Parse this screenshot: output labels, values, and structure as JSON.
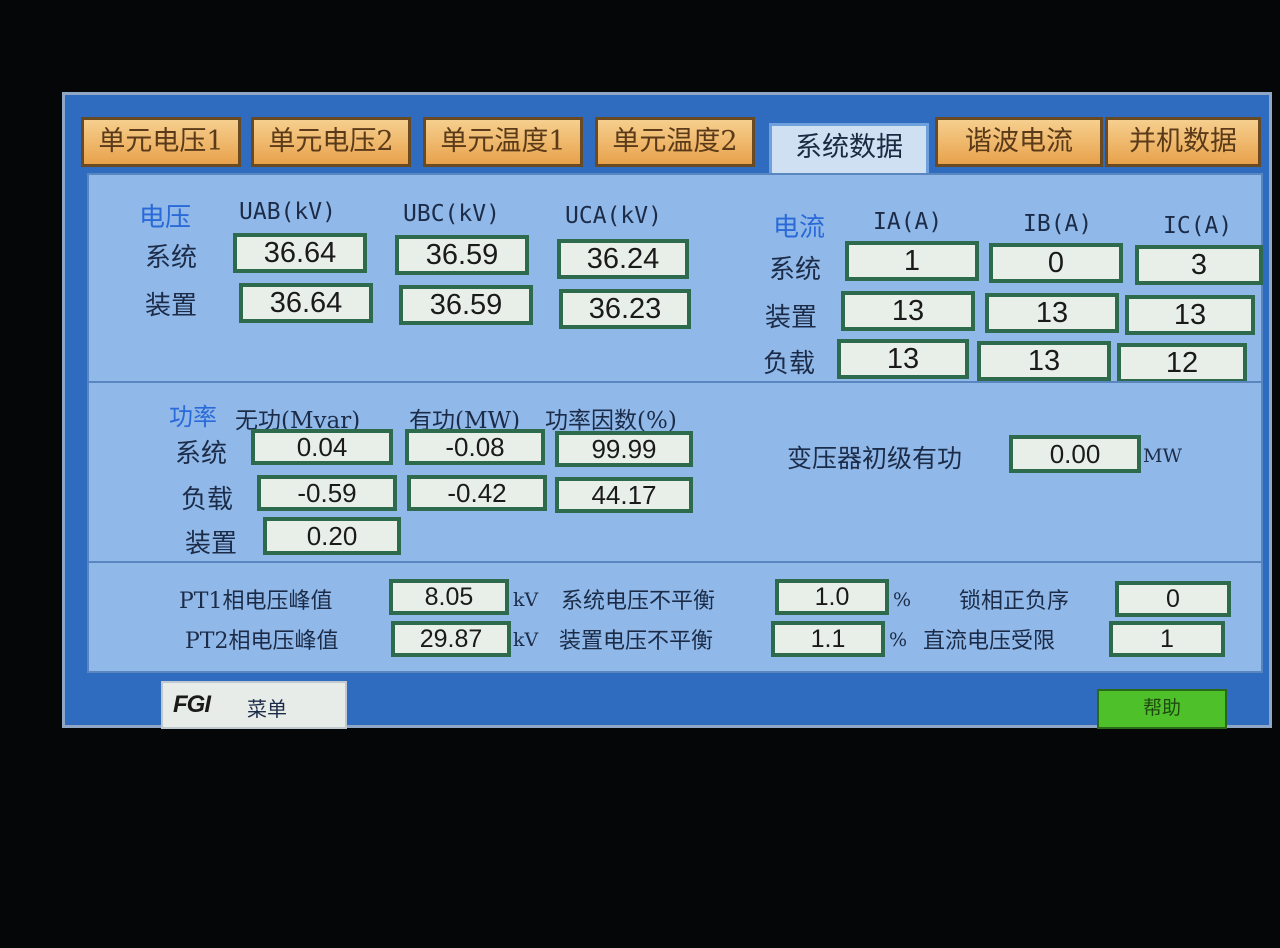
{
  "tabs": [
    {
      "label": "单元电压1"
    },
    {
      "label": "单元电压2"
    },
    {
      "label": "单元温度1"
    },
    {
      "label": "单元温度2"
    },
    {
      "label": "系统数据",
      "active": true
    },
    {
      "label": "谐波电流"
    },
    {
      "label": "并机数据"
    }
  ],
  "voltage": {
    "title": "电压",
    "headers": [
      "UAB(kV)",
      "UBC(kV)",
      "UCA(kV)"
    ],
    "rows": [
      {
        "label": "系统",
        "values": [
          "36.64",
          "36.59",
          "36.24"
        ]
      },
      {
        "label": "装置",
        "values": [
          "36.64",
          "36.59",
          "36.23"
        ]
      }
    ]
  },
  "current": {
    "title": "电流",
    "headers": [
      "IA(A)",
      "IB(A)",
      "IC(A)"
    ],
    "rows": [
      {
        "label": "系统",
        "values": [
          "1",
          "0",
          "3"
        ]
      },
      {
        "label": "装置",
        "values": [
          "13",
          "13",
          "13"
        ]
      },
      {
        "label": "负载",
        "values": [
          "13",
          "13",
          "12"
        ]
      }
    ]
  },
  "power": {
    "title": "功率",
    "headers": [
      "无功(Mvar)",
      "有功(MW)",
      "功率因数(%)"
    ],
    "rows": [
      {
        "label": "系统",
        "values": [
          "0.04",
          "-0.08",
          "99.99"
        ]
      },
      {
        "label": "负载",
        "values": [
          "-0.59",
          "-0.42",
          "44.17"
        ]
      },
      {
        "label": "装置",
        "values": [
          "0.20"
        ]
      }
    ],
    "transformer": {
      "label": "变压器初级有功",
      "value": "0.00",
      "unit": "MW"
    }
  },
  "status": {
    "pt1": {
      "label": "PT1相电压峰值",
      "value": "8.05",
      "unit": "kV"
    },
    "pt2": {
      "label": "PT2相电压峰值",
      "value": "29.87",
      "unit": "kV"
    },
    "sys_unbal": {
      "label": "系统电压不平衡",
      "value": "1.0",
      "unit": "%"
    },
    "dev_unbal": {
      "label": "装置电压不平衡",
      "value": "1.1",
      "unit": "%"
    },
    "phase_lock": {
      "label": "锁相正负序",
      "value": "0"
    },
    "dc_limit": {
      "label": "直流电压受限",
      "value": "1"
    }
  },
  "footer": {
    "logo": "FGI",
    "menu": "菜单",
    "help": "帮助"
  },
  "colors": {
    "background": "#2f6cc0",
    "panel": "#90b8e8",
    "tab": "#e8a24c",
    "value_border": "#2e6a4c",
    "help_button": "#4ec02a"
  }
}
